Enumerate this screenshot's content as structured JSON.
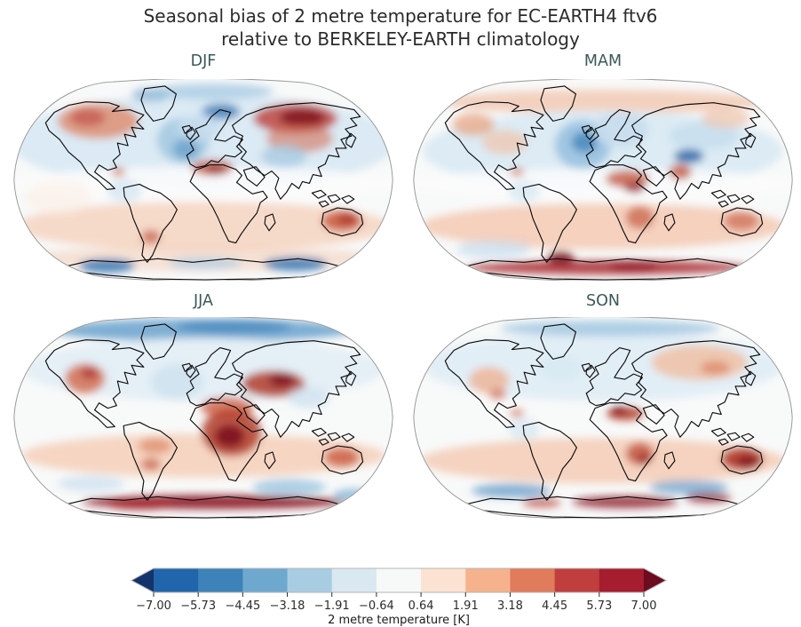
{
  "figure": {
    "title_line1": "Seasonal bias of 2 metre temperature for EC-EARTH4 ftv6",
    "title_line2": "relative to BERKELEY-EARTH climatology"
  },
  "chart_data": {
    "type": "heatmap",
    "subtype": "filled-contour-world-maps",
    "projection": "Robinson",
    "variable": "2 metre temperature bias",
    "units": "K",
    "range": [
      -7.0,
      7.0
    ],
    "colors": {
      "figure_title": "#2b2b2b",
      "panel_title": "#3b5955",
      "coastline": "#0b0b0b",
      "map_edge": "#9a9a9a",
      "map_base": "#f8f9f9"
    },
    "colorbar": {
      "label": "2 metre temperature [K]",
      "ticks": [
        "−7.00",
        "−5.73",
        "−4.45",
        "−3.18",
        "−1.91",
        "−0.64",
        "0.64",
        "1.91",
        "3.18",
        "4.45",
        "5.73",
        "7.00"
      ],
      "tick_values": [
        -7.0,
        -5.73,
        -4.45,
        -3.18,
        -1.91,
        -0.64,
        0.64,
        1.91,
        3.18,
        4.45,
        5.73,
        7.0
      ],
      "segment_colors": [
        "#2166ac",
        "#3e82ba",
        "#6fa8cf",
        "#a8cde2",
        "#d9e8f1",
        "#f7f8f8",
        "#fce2d2",
        "#f6b28d",
        "#e07b5c",
        "#c13e3e",
        "#a51d2f"
      ],
      "extend": "both",
      "extend_left_color": "#12336b",
      "extend_right_color": "#6d0b20",
      "tick_color": "#2b2b2b",
      "label_color": "#1a1a1a"
    },
    "panels": [
      {
        "label": "DJF",
        "major_features": [
          "strong warm bias over Siberia and eastern Russia",
          "warm bias over Alaska, western Canada, Sahel and Australia",
          "cold bias over North Atlantic, Scandinavia/Barents Sea and Tibetan Plateau",
          "weak warm bias over southern mid-latitude oceans, cold bias along Antarctic coast"
        ],
        "blobs": [
          [
            220,
            72,
            220,
            55,
            "#dbeaf4",
            1
          ],
          [
            220,
            120,
            225,
            20,
            "#fbfcfc",
            0.85
          ],
          [
            220,
            168,
            215,
            28,
            "#f6d8c6",
            0.95
          ],
          [
            220,
            205,
            210,
            14,
            "#f3cdb6",
            0.55
          ],
          [
            100,
            48,
            46,
            20,
            "#dd8a6a",
            0.8
          ],
          [
            88,
            44,
            20,
            10,
            "#c0504a",
            0.7
          ],
          [
            325,
            45,
            48,
            17,
            "#c0504a",
            0.9
          ],
          [
            333,
            44,
            26,
            10,
            "#7e1120",
            0.85
          ],
          [
            330,
            68,
            38,
            16,
            "#d1664a",
            0.55
          ],
          [
            197,
            70,
            30,
            26,
            "#a9cbe2",
            0.95
          ],
          [
            200,
            80,
            15,
            12,
            "#6fa3cc",
            0.85
          ],
          [
            240,
            37,
            22,
            9,
            "#3a78b4",
            0.8
          ],
          [
            160,
            18,
            22,
            8,
            "#6fa3cc",
            0.6
          ],
          [
            230,
            14,
            70,
            9,
            "#9cc4e0",
            0.7
          ],
          [
            215,
            55,
            25,
            15,
            "#c6ddee",
            0.85
          ],
          [
            312,
            88,
            26,
            13,
            "#a9cbe2",
            0.8
          ],
          [
            230,
            101,
            24,
            9,
            "#c2563f",
            0.8
          ],
          [
            234,
            104,
            11,
            5,
            "#8c1a26",
            0.7
          ],
          [
            130,
            127,
            20,
            13,
            "#d7e8f3",
            0.85
          ],
          [
            123,
            106,
            8,
            5,
            "#cc6a50",
            0.7
          ],
          [
            378,
            162,
            23,
            12,
            "#cc5f45",
            0.9
          ],
          [
            384,
            160,
            11,
            6,
            "#a33226",
            0.75
          ],
          [
            160,
            180,
            11,
            8,
            "#c2563f",
            0.7
          ],
          [
            110,
            213,
            32,
            8,
            "#3a78b4",
            0.85
          ],
          [
            325,
            211,
            36,
            8,
            "#3a78b4",
            0.85
          ],
          [
            222,
            210,
            42,
            7,
            "#a9cbe2",
            0.65
          ],
          [
            55,
            135,
            38,
            20,
            "#fbeee4",
            0.6
          ]
        ]
      },
      {
        "label": "MAM",
        "major_features": [
          "strong cold bias over the North Atlantic and Tibetan Plateau",
          "cool bias over Europe and western Siberia",
          "warm bias over Sahel, southern Africa, India and Australia",
          "strong warm bias along Antarctic coast and Antarctic Peninsula"
        ],
        "blobs": [
          [
            220,
            26,
            185,
            14,
            "#f2cab5",
            0.85
          ],
          [
            220,
            82,
            205,
            46,
            "#dcebf4",
            1
          ],
          [
            220,
            120,
            225,
            18,
            "#fbfcfc",
            0.85
          ],
          [
            220,
            168,
            208,
            26,
            "#f4cfbb",
            0.95
          ],
          [
            197,
            75,
            32,
            28,
            "#9cc4e0",
            0.95
          ],
          [
            199,
            72,
            15,
            12,
            "#4d8cc0",
            0.9
          ],
          [
            240,
            58,
            32,
            20,
            "#c6ddee",
            0.9
          ],
          [
            318,
            88,
            17,
            8,
            "#2f6cac",
            0.9
          ],
          [
            335,
            65,
            40,
            16,
            "#c6ddee",
            0.8
          ],
          [
            360,
            45,
            28,
            11,
            "#eec3ab",
            0.7
          ],
          [
            72,
            52,
            24,
            13,
            "#e8a583",
            0.75
          ],
          [
            108,
            72,
            26,
            14,
            "#f0c3a9",
            0.7
          ],
          [
            248,
            114,
            25,
            10,
            "#c2563f",
            0.8
          ],
          [
            256,
            124,
            12,
            6,
            "#8c1a26",
            0.7
          ],
          [
            262,
            158,
            16,
            13,
            "#cc6a50",
            0.8
          ],
          [
            308,
            106,
            13,
            9,
            "#c2563f",
            0.8
          ],
          [
            378,
            162,
            20,
            11,
            "#d1745b",
            0.8
          ],
          [
            130,
            128,
            18,
            12,
            "#d7e8f3",
            0.8
          ],
          [
            122,
            106,
            8,
            5,
            "#cc6a50",
            0.65
          ],
          [
            225,
            215,
            160,
            8,
            "#a8292f",
            0.85
          ],
          [
            172,
            204,
            15,
            8,
            "#7e1120",
            0.85
          ],
          [
            255,
            213,
            28,
            6,
            "#8c1a26",
            0.7
          ],
          [
            95,
            194,
            42,
            10,
            "#c6ddee",
            0.7
          ]
        ]
      },
      {
        "label": "JJA",
        "major_features": [
          "cold bias over the Arctic ocean",
          "strong warm bias over Africa (Sahara, Sahel, Congo)",
          "strong warm bias over Middle East and central Asia, western North America, Australia",
          "strong warm bias along Antarctic coastline, cool patches in Southern Ocean"
        ],
        "blobs": [
          [
            220,
            15,
            172,
            13,
            "#77abd2",
            0.95
          ],
          [
            255,
            11,
            65,
            8,
            "#4d8cc0",
            0.85
          ],
          [
            220,
            60,
            205,
            36,
            "#e4eff6",
            1
          ],
          [
            220,
            158,
            208,
            25,
            "#f5d4c0",
            0.95
          ],
          [
            190,
            74,
            30,
            20,
            "#cfe2f0",
            0.9
          ],
          [
            85,
            70,
            23,
            17,
            "#d1664a",
            0.8
          ],
          [
            90,
            64,
            10,
            7,
            "#a8292f",
            0.7
          ],
          [
            247,
            103,
            30,
            12,
            "#d1664a",
            0.85
          ],
          [
            252,
            132,
            34,
            27,
            "#b23c2c",
            0.85
          ],
          [
            250,
            136,
            17,
            13,
            "#7e1120",
            0.9
          ],
          [
            300,
            76,
            36,
            15,
            "#b23c2c",
            0.85
          ],
          [
            310,
            72,
            15,
            8,
            "#7e1120",
            0.85
          ],
          [
            340,
            92,
            24,
            12,
            "#cfe2f0",
            0.8
          ],
          [
            165,
            147,
            19,
            9,
            "#dd8a6a",
            0.75
          ],
          [
            160,
            168,
            11,
            7,
            "#c2563f",
            0.7
          ],
          [
            378,
            160,
            20,
            11,
            "#cc5f45",
            0.85
          ],
          [
            232,
            211,
            150,
            8,
            "#8c1a26",
            0.9
          ],
          [
            148,
            214,
            38,
            6,
            "#a8292f",
            0.8
          ],
          [
            318,
            194,
            42,
            9,
            "#9cc4e0",
            0.8
          ],
          [
            92,
            190,
            38,
            9,
            "#cfe2f0",
            0.8
          ],
          [
            392,
            203,
            24,
            7,
            "#77abd2",
            0.7
          ]
        ]
      },
      {
        "label": "SON",
        "major_features": [
          "strong warm bias over Australia and southern Africa",
          "warm bias over Siberia, western North America and Sahel",
          "cool bias over northern oceans and Amazon",
          "warm bias along Antarctic coast with cold Southern Ocean bands"
        ],
        "blobs": [
          [
            220,
            56,
            205,
            40,
            "#e2eef6",
            1
          ],
          [
            228,
            13,
            125,
            9,
            "#9cc4e0",
            0.8
          ],
          [
            220,
            164,
            208,
            26,
            "#f4d1bd",
            0.95
          ],
          [
            330,
            52,
            55,
            20,
            "#efc0a5",
            0.85
          ],
          [
            348,
            58,
            17,
            8,
            "#dd8a6a",
            0.8
          ],
          [
            90,
            72,
            23,
            15,
            "#eeb294",
            0.8
          ],
          [
            100,
            88,
            10,
            6,
            "#cc6a50",
            0.7
          ],
          [
            172,
            58,
            24,
            16,
            "#d7e8f3",
            0.8
          ],
          [
            245,
            110,
            21,
            8,
            "#b23c2c",
            0.85
          ],
          [
            238,
            106,
            8,
            5,
            "#7e1120",
            0.8
          ],
          [
            262,
            156,
            16,
            13,
            "#c2563f",
            0.85
          ],
          [
            267,
            162,
            8,
            6,
            "#8c1a26",
            0.7
          ],
          [
            379,
            162,
            24,
            13,
            "#b23c2c",
            0.92
          ],
          [
            385,
            165,
            12,
            7,
            "#7e1120",
            0.8
          ],
          [
            130,
            128,
            18,
            12,
            "#d7e8f3",
            0.8
          ],
          [
            122,
            110,
            8,
            5,
            "#cc6a50",
            0.65
          ],
          [
            115,
            198,
            45,
            8,
            "#6fa3cc",
            0.8
          ],
          [
            318,
            194,
            45,
            8,
            "#6fa3cc",
            0.75
          ],
          [
            245,
            211,
            60,
            7,
            "#8c1a26",
            0.8
          ],
          [
            340,
            206,
            26,
            6,
            "#8c1a26",
            0.75
          ],
          [
            150,
            212,
            22,
            5,
            "#b23c2c",
            0.7
          ]
        ]
      }
    ]
  }
}
